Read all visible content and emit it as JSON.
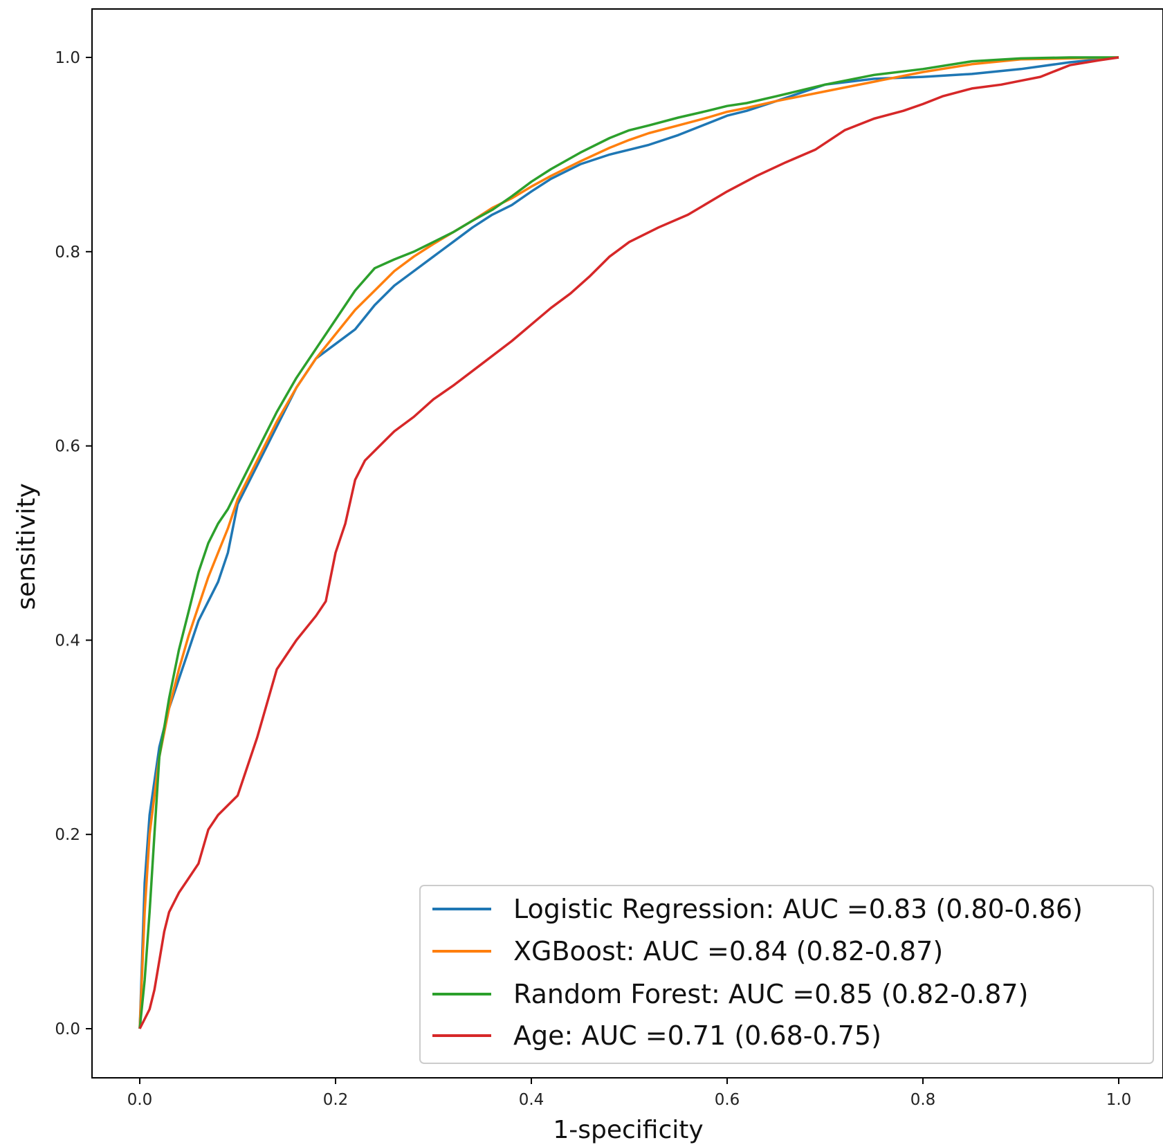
{
  "chart_data": {
    "type": "line",
    "title": "",
    "xlabel": "1-specificity",
    "ylabel": "sensitivity",
    "xlim": [
      -0.05,
      1.05
    ],
    "ylim": [
      -0.05,
      1.05
    ],
    "x_ticks": [
      "0.0",
      "0.2",
      "0.4",
      "0.6",
      "0.8",
      "1.0"
    ],
    "y_ticks": [
      "0.0",
      "0.2",
      "0.4",
      "0.6",
      "0.8",
      "1.0"
    ],
    "grid": false,
    "legend_position": "lower-right",
    "series": [
      {
        "name": "Logistic Regression: AUC =0.83 (0.80-0.86)",
        "color": "#1f77b4",
        "x": [
          0.0,
          0.005,
          0.01,
          0.02,
          0.03,
          0.04,
          0.05,
          0.06,
          0.07,
          0.08,
          0.09,
          0.1,
          0.12,
          0.14,
          0.16,
          0.18,
          0.2,
          0.22,
          0.24,
          0.26,
          0.28,
          0.3,
          0.32,
          0.34,
          0.36,
          0.38,
          0.4,
          0.42,
          0.45,
          0.48,
          0.5,
          0.52,
          0.55,
          0.58,
          0.6,
          0.62,
          0.65,
          0.7,
          0.75,
          0.8,
          0.85,
          0.9,
          0.95,
          1.0
        ],
        "y": [
          0.0,
          0.15,
          0.22,
          0.29,
          0.33,
          0.36,
          0.39,
          0.42,
          0.44,
          0.46,
          0.49,
          0.54,
          0.58,
          0.62,
          0.66,
          0.69,
          0.705,
          0.72,
          0.745,
          0.765,
          0.78,
          0.795,
          0.81,
          0.825,
          0.838,
          0.848,
          0.862,
          0.875,
          0.89,
          0.9,
          0.905,
          0.91,
          0.92,
          0.932,
          0.94,
          0.945,
          0.955,
          0.972,
          0.978,
          0.98,
          0.983,
          0.988,
          0.995,
          1.0
        ]
      },
      {
        "name": "XGBoost: AUC =0.84 (0.82-0.87)",
        "color": "#ff7f0e",
        "x": [
          0.0,
          0.005,
          0.01,
          0.02,
          0.03,
          0.04,
          0.05,
          0.06,
          0.07,
          0.08,
          0.09,
          0.1,
          0.12,
          0.14,
          0.16,
          0.18,
          0.2,
          0.22,
          0.24,
          0.26,
          0.28,
          0.3,
          0.32,
          0.34,
          0.36,
          0.38,
          0.4,
          0.42,
          0.45,
          0.48,
          0.5,
          0.52,
          0.55,
          0.58,
          0.6,
          0.62,
          0.65,
          0.7,
          0.75,
          0.8,
          0.85,
          0.9,
          0.95,
          1.0
        ],
        "y": [
          0.0,
          0.12,
          0.2,
          0.28,
          0.33,
          0.37,
          0.405,
          0.435,
          0.465,
          0.49,
          0.515,
          0.545,
          0.585,
          0.625,
          0.66,
          0.69,
          0.715,
          0.74,
          0.76,
          0.78,
          0.795,
          0.808,
          0.82,
          0.832,
          0.845,
          0.855,
          0.867,
          0.878,
          0.893,
          0.907,
          0.915,
          0.922,
          0.93,
          0.938,
          0.944,
          0.948,
          0.955,
          0.965,
          0.975,
          0.985,
          0.993,
          0.998,
          0.999,
          1.0
        ]
      },
      {
        "name": "Random Forest: AUC =0.85 (0.82-0.87)",
        "color": "#2ca02c",
        "x": [
          0.0,
          0.005,
          0.01,
          0.015,
          0.02,
          0.03,
          0.04,
          0.05,
          0.06,
          0.07,
          0.08,
          0.09,
          0.1,
          0.12,
          0.14,
          0.16,
          0.18,
          0.2,
          0.22,
          0.24,
          0.26,
          0.28,
          0.3,
          0.32,
          0.34,
          0.36,
          0.38,
          0.4,
          0.42,
          0.45,
          0.48,
          0.5,
          0.52,
          0.55,
          0.58,
          0.6,
          0.62,
          0.65,
          0.7,
          0.75,
          0.8,
          0.85,
          0.9,
          0.95,
          1.0
        ],
        "y": [
          0.0,
          0.05,
          0.12,
          0.2,
          0.28,
          0.34,
          0.39,
          0.43,
          0.47,
          0.5,
          0.52,
          0.535,
          0.555,
          0.595,
          0.635,
          0.67,
          0.7,
          0.73,
          0.76,
          0.783,
          0.792,
          0.8,
          0.81,
          0.82,
          0.832,
          0.843,
          0.857,
          0.872,
          0.885,
          0.902,
          0.917,
          0.925,
          0.93,
          0.938,
          0.945,
          0.95,
          0.953,
          0.96,
          0.972,
          0.982,
          0.988,
          0.996,
          0.999,
          1.0,
          1.0
        ]
      },
      {
        "name": "Age: AUC =0.71 (0.68-0.75)",
        "color": "#d62728",
        "x": [
          0.0,
          0.005,
          0.01,
          0.015,
          0.02,
          0.025,
          0.03,
          0.04,
          0.05,
          0.06,
          0.07,
          0.08,
          0.1,
          0.12,
          0.14,
          0.16,
          0.18,
          0.19,
          0.2,
          0.21,
          0.22,
          0.23,
          0.24,
          0.26,
          0.28,
          0.3,
          0.32,
          0.35,
          0.38,
          0.4,
          0.42,
          0.44,
          0.46,
          0.48,
          0.5,
          0.53,
          0.56,
          0.6,
          0.63,
          0.66,
          0.69,
          0.72,
          0.75,
          0.78,
          0.8,
          0.82,
          0.85,
          0.88,
          0.9,
          0.92,
          0.95,
          0.98,
          1.0
        ],
        "y": [
          0.0,
          0.01,
          0.02,
          0.04,
          0.07,
          0.1,
          0.12,
          0.14,
          0.155,
          0.17,
          0.205,
          0.22,
          0.24,
          0.3,
          0.37,
          0.4,
          0.425,
          0.44,
          0.49,
          0.52,
          0.565,
          0.585,
          0.595,
          0.615,
          0.63,
          0.648,
          0.662,
          0.685,
          0.708,
          0.725,
          0.742,
          0.757,
          0.775,
          0.795,
          0.81,
          0.825,
          0.838,
          0.862,
          0.878,
          0.892,
          0.905,
          0.925,
          0.937,
          0.945,
          0.952,
          0.96,
          0.968,
          0.972,
          0.976,
          0.98,
          0.992,
          0.997,
          1.0
        ]
      }
    ]
  }
}
